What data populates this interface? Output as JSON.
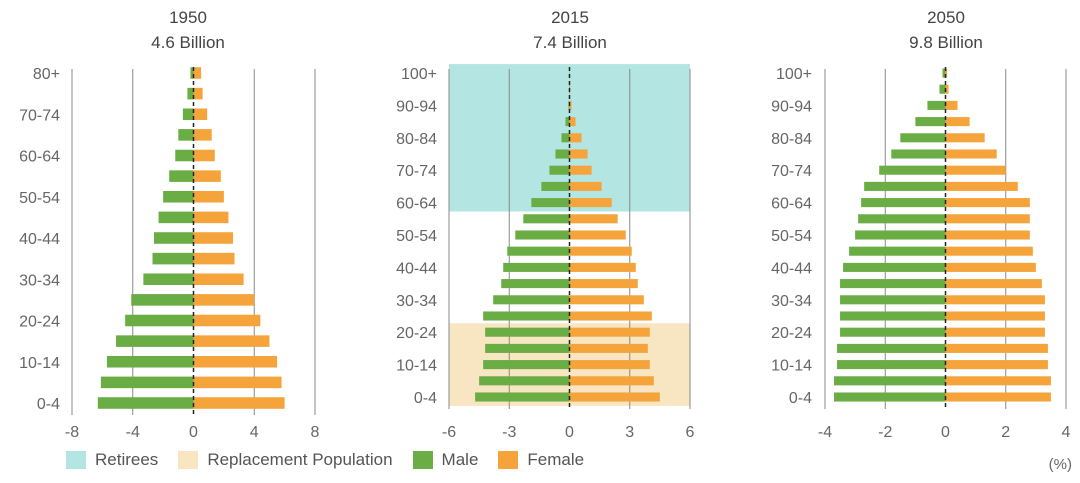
{
  "chart_data": [
    {
      "type": "bar",
      "title": "1950",
      "subtitle": "4.6 Billion",
      "xlim": [
        -8,
        8
      ],
      "xticks": [
        -8,
        -4,
        0,
        4,
        8
      ],
      "ytick_labels": [
        "80+",
        "70-74",
        "60-64",
        "50-54",
        "40-44",
        "30-34",
        "20-24",
        "10-14",
        "0-4"
      ],
      "categories": [
        "0-4",
        "5-9",
        "10-14",
        "15-19",
        "20-24",
        "25-29",
        "30-34",
        "35-39",
        "40-44",
        "45-49",
        "50-54",
        "55-59",
        "60-64",
        "65-69",
        "70-74",
        "75-79",
        "80+"
      ],
      "series": [
        {
          "name": "Male",
          "values": [
            -6.3,
            -6.1,
            -5.7,
            -5.1,
            -4.5,
            -4.1,
            -3.3,
            -2.7,
            -2.6,
            -2.3,
            -2.0,
            -1.6,
            -1.2,
            -1.0,
            -0.7,
            -0.4,
            -0.2
          ]
        },
        {
          "name": "Female",
          "values": [
            6.0,
            5.8,
            5.5,
            5.0,
            4.4,
            4.0,
            3.3,
            2.7,
            2.6,
            2.3,
            2.0,
            1.8,
            1.4,
            1.2,
            0.9,
            0.6,
            0.5
          ]
        }
      ]
    },
    {
      "type": "bar",
      "title": "2015",
      "subtitle": "7.4 Billion",
      "xlim": [
        -6,
        6
      ],
      "xticks": [
        -6,
        -3,
        0,
        3,
        6
      ],
      "ytick_labels": [
        "100+",
        "90-94",
        "80-84",
        "70-74",
        "60-64",
        "50-54",
        "40-44",
        "30-34",
        "20-24",
        "10-14",
        "0-4"
      ],
      "categories": [
        "0-4",
        "5-9",
        "10-14",
        "15-19",
        "20-24",
        "25-29",
        "30-34",
        "35-39",
        "40-44",
        "45-49",
        "50-54",
        "55-59",
        "60-64",
        "65-69",
        "70-74",
        "75-79",
        "80-84",
        "85-89",
        "90-94",
        "95-99",
        "100+"
      ],
      "series": [
        {
          "name": "Male",
          "values": [
            -4.7,
            -4.5,
            -4.3,
            -4.2,
            -4.2,
            -4.3,
            -3.8,
            -3.4,
            -3.3,
            -3.1,
            -2.7,
            -2.3,
            -1.9,
            -1.4,
            -1.0,
            -0.7,
            -0.4,
            -0.2,
            -0.05,
            -0.02,
            -0.01
          ]
        },
        {
          "name": "Female",
          "values": [
            4.5,
            4.2,
            4.0,
            3.9,
            4.0,
            4.1,
            3.7,
            3.4,
            3.3,
            3.1,
            2.8,
            2.4,
            2.1,
            1.6,
            1.1,
            0.9,
            0.6,
            0.3,
            0.1,
            0.03,
            0.01
          ]
        }
      ],
      "bands": [
        {
          "name": "Retirees",
          "from": "60-64",
          "to": "100+",
          "color": "#b3e5e3"
        },
        {
          "name": "Replacement Population",
          "from": "0-4",
          "to": "20-24",
          "color": "#f7e6c1"
        }
      ]
    },
    {
      "type": "bar",
      "title": "2050",
      "subtitle": "9.8 Billion",
      "xlim": [
        -4,
        4
      ],
      "xticks": [
        -4,
        -2,
        0,
        2,
        4
      ],
      "ytick_labels": [
        "100+",
        "90-94",
        "80-84",
        "70-74",
        "60-64",
        "50-54",
        "40-44",
        "30-34",
        "20-24",
        "10-14",
        "0-4"
      ],
      "categories": [
        "0-4",
        "5-9",
        "10-14",
        "15-19",
        "20-24",
        "25-29",
        "30-34",
        "35-39",
        "40-44",
        "45-49",
        "50-54",
        "55-59",
        "60-64",
        "65-69",
        "70-74",
        "75-79",
        "80-84",
        "85-89",
        "90-94",
        "95-99",
        "100+"
      ],
      "series": [
        {
          "name": "Male",
          "values": [
            -3.7,
            -3.7,
            -3.6,
            -3.6,
            -3.5,
            -3.5,
            -3.5,
            -3.5,
            -3.4,
            -3.2,
            -3.0,
            -2.9,
            -2.8,
            -2.7,
            -2.2,
            -1.8,
            -1.5,
            -1.0,
            -0.6,
            -0.2,
            -0.1
          ]
        },
        {
          "name": "Female",
          "values": [
            3.5,
            3.5,
            3.4,
            3.4,
            3.3,
            3.3,
            3.3,
            3.2,
            3.0,
            2.9,
            2.8,
            2.8,
            2.8,
            2.4,
            2.0,
            1.7,
            1.3,
            0.8,
            0.4,
            0.1,
            0.05
          ]
        }
      ]
    }
  ],
  "legend": [
    {
      "label": "Retirees",
      "color": "#b3e5e3"
    },
    {
      "label": "Replacement Population",
      "color": "#f7e6c1"
    },
    {
      "label": "Male",
      "color": "#6aad45"
    },
    {
      "label": "Female",
      "color": "#f5a43b"
    }
  ],
  "unit_label": "(%)"
}
